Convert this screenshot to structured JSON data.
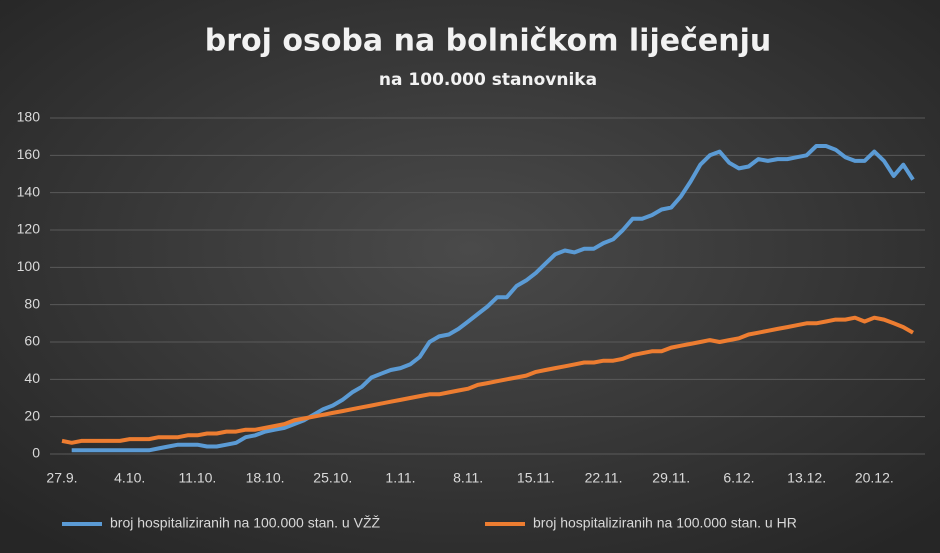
{
  "chart_data": {
    "type": "line",
    "title": "broj osoba na bolničkom liječenju",
    "subtitle": "na 100.000 stanovnika",
    "categories": [
      "27.9.",
      null,
      null,
      null,
      null,
      null,
      null,
      "4.10.",
      null,
      null,
      null,
      null,
      null,
      null,
      "11.10.",
      null,
      null,
      null,
      null,
      null,
      null,
      "18.10.",
      null,
      null,
      null,
      null,
      null,
      null,
      "25.10.",
      null,
      null,
      null,
      null,
      null,
      null,
      "1.11.",
      null,
      null,
      null,
      null,
      null,
      null,
      "8.11.",
      null,
      null,
      null,
      null,
      null,
      null,
      "15.11.",
      null,
      null,
      null,
      null,
      null,
      null,
      "22.11.",
      null,
      null,
      null,
      null,
      null,
      null,
      "29.11.",
      null,
      null,
      null,
      null,
      null,
      null,
      "6.12.",
      null,
      null,
      null,
      null,
      null,
      null,
      "13.12.",
      null,
      null,
      null,
      null,
      null,
      null,
      "20.12.",
      null,
      null,
      null,
      null
    ],
    "series": [
      {
        "name": "broj hospitaliziranih na 100.000 stan. u VŽŽ",
        "color": "#5b9bd5",
        "values": [
          null,
          2,
          2,
          2,
          2,
          2,
          2,
          2,
          2,
          2,
          3,
          4,
          5,
          5,
          5,
          4,
          4,
          5,
          6,
          9,
          10,
          12,
          13,
          14,
          16,
          18,
          21,
          24,
          26,
          29,
          33,
          36,
          41,
          43,
          45,
          46,
          48,
          52,
          60,
          63,
          64,
          67,
          71,
          75,
          79,
          84,
          84,
          90,
          93,
          97,
          102,
          107,
          109,
          108,
          110,
          110,
          113,
          115,
          120,
          126,
          126,
          128,
          131,
          132,
          138,
          146,
          155,
          160,
          162,
          156,
          153,
          154,
          158,
          157,
          158,
          158,
          159,
          160,
          165,
          165,
          163,
          159,
          157,
          157,
          162,
          157,
          149,
          155,
          147
        ]
      },
      {
        "name": "broj hospitaliziranih na 100.000 stan. u HR",
        "color": "#ed7d31",
        "values": [
          7,
          6,
          7,
          7,
          7,
          7,
          7,
          8,
          8,
          8,
          9,
          9,
          9,
          10,
          10,
          11,
          11,
          12,
          12,
          13,
          13,
          14,
          15,
          16,
          18,
          19,
          20,
          21,
          22,
          23,
          24,
          25,
          26,
          27,
          28,
          29,
          30,
          31,
          32,
          32,
          33,
          34,
          35,
          37,
          38,
          39,
          40,
          41,
          42,
          44,
          45,
          46,
          47,
          48,
          49,
          49,
          50,
          50,
          51,
          53,
          54,
          55,
          55,
          57,
          58,
          59,
          60,
          61,
          60,
          61,
          62,
          64,
          65,
          66,
          67,
          68,
          69,
          70,
          70,
          71,
          72,
          72,
          73,
          71,
          73,
          72,
          70,
          68,
          65
        ]
      }
    ],
    "ylim": [
      0,
      180
    ],
    "yticks": [
      0,
      20,
      40,
      60,
      80,
      100,
      120,
      140,
      160,
      180
    ],
    "grid": true,
    "legend": "bottom"
  }
}
